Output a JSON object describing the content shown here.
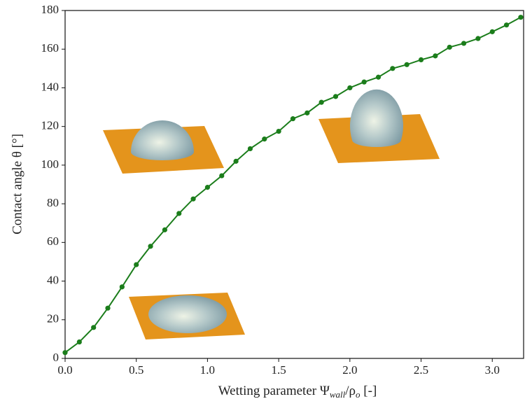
{
  "chart_data": {
    "type": "line",
    "xlabel": [
      "Wetting parameter Ψ",
      "wall",
      "/ρ",
      "o",
      " [-]"
    ],
    "ylabel": "Contact angle θ [°]",
    "x": [
      0,
      0.1,
      0.2,
      0.3,
      0.4,
      0.5,
      0.6,
      0.7,
      0.8,
      0.9,
      1.0,
      1.1,
      1.2,
      1.3,
      1.4,
      1.5,
      1.6,
      1.7,
      1.8,
      1.9,
      2.0,
      2.1,
      2.2,
      2.3,
      2.4,
      2.5,
      2.6,
      2.7,
      2.8,
      2.9,
      3.0,
      3.1,
      3.2
    ],
    "series": [
      {
        "color": "#1b7d1b",
        "values": [
          3,
          8.5,
          16,
          26,
          37,
          48.5,
          58,
          66.5,
          75,
          82.5,
          88.5,
          94.5,
          102,
          108.5,
          113.5,
          117.5,
          124,
          127,
          132.5,
          135.5,
          140,
          143,
          145.5,
          150,
          152,
          154.5,
          156.5,
          161,
          163,
          165.5,
          169,
          172.5,
          176.5
        ]
      }
    ],
    "xlim": [
      0,
      3.22
    ],
    "ylim": [
      0,
      180
    ],
    "xticks": [
      {
        "value": 0,
        "label": "0.0"
      },
      0.5,
      {
        "value": 1,
        "label": "1.0"
      },
      1.5,
      {
        "value": 2,
        "label": "2.0"
      },
      2.5,
      {
        "value": 3,
        "label": "3.0"
      }
    ],
    "yticks": [
      0,
      20,
      40,
      60,
      80,
      100,
      120,
      140,
      160,
      180
    ]
  }
}
